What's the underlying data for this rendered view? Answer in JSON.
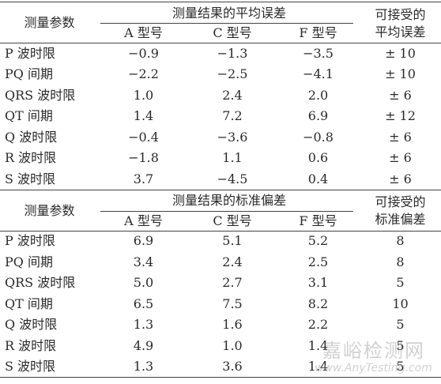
{
  "sections": [
    {
      "header": {
        "param": "测量参数",
        "group": "测量结果的平均误差",
        "accept": [
          "可接受的",
          "平均误差"
        ],
        "models": [
          "A 型号",
          "C 型号",
          "F 型号"
        ]
      },
      "rows": [
        [
          "P 波时限",
          "−0.9",
          "−1.3",
          "−3.5",
          "± 10"
        ],
        [
          "PQ 间期",
          "−2.2",
          "−2.5",
          "−4.1",
          "± 10"
        ],
        [
          "QRS 波时限",
          "1.0",
          "2.4",
          "2.0",
          "± 6"
        ],
        [
          "QT 间期",
          "1.4",
          "7.2",
          "6.9",
          "± 12"
        ],
        [
          "Q 波时限",
          "−0.4",
          "−3.6",
          "−0.8",
          "± 6"
        ],
        [
          "R 波时限",
          "−1.8",
          "1.1",
          "0.6",
          "± 6"
        ],
        [
          "S 波时限",
          "3.7",
          "−4.5",
          "0.4",
          "± 6"
        ]
      ]
    },
    {
      "header": {
        "param": "测量参数",
        "group": "测量结果的标准偏差",
        "accept": [
          "可接受的",
          "标准偏差"
        ],
        "models": [
          "A 型号",
          "C 型号",
          "F 型号"
        ]
      },
      "rows": [
        [
          "P 波时限",
          "6.9",
          "5.1",
          "5.2",
          "8"
        ],
        [
          "PQ 间期",
          "3.4",
          "2.4",
          "2.5",
          "8"
        ],
        [
          "QRS 波时限",
          "5.0",
          "2.7",
          "3.1",
          "5"
        ],
        [
          "QT 间期",
          "6.5",
          "7.5",
          "8.2",
          "10"
        ],
        [
          "Q 波时限",
          "1.3",
          "1.6",
          "2.2",
          "5"
        ],
        [
          "R 波时限",
          "4.9",
          "1.0",
          "1.4",
          "5"
        ],
        [
          "S 波时限",
          "1.3",
          "3.6",
          "1.4",
          "5"
        ]
      ]
    }
  ],
  "watermark": {
    "site": "嘉峪检测网",
    "url": "www.AnyTesting.com"
  }
}
